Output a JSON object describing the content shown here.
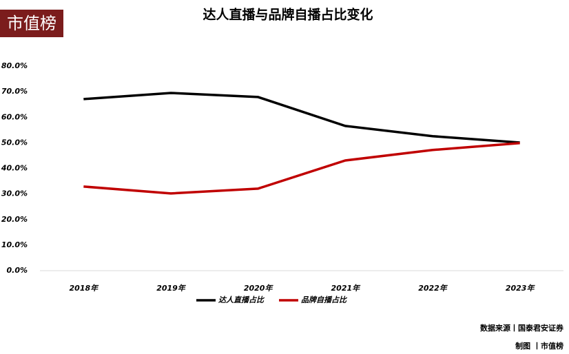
{
  "chart_data": {
    "type": "line",
    "title": "达人直播与品牌自播占比变化",
    "logo": "市值榜",
    "source": "数据来源丨国泰君安证券",
    "credit": "制图 丨市值榜",
    "categories": [
      "2018年",
      "2019年",
      "2020年",
      "2021年",
      "2022年",
      "2023年"
    ],
    "series": [
      {
        "name": "达人直播占比",
        "color": "#000000",
        "values": [
          67.1,
          69.5,
          67.9,
          56.6,
          52.6,
          50.1
        ]
      },
      {
        "name": "品牌自播占比",
        "color": "#c00000",
        "values": [
          32.9,
          30.2,
          32.1,
          43.1,
          47.2,
          49.9
        ]
      }
    ],
    "ylim": [
      0,
      80
    ],
    "yticks": [
      {
        "value": 0,
        "label": "0.0%"
      },
      {
        "value": 10,
        "label": "10.0%"
      },
      {
        "value": 20,
        "label": "20.0%"
      },
      {
        "value": 30,
        "label": "30.0%"
      },
      {
        "value": 40,
        "label": "40.0%"
      },
      {
        "value": 50,
        "label": "50.0%"
      },
      {
        "value": 60,
        "label": "60.0%"
      },
      {
        "value": 70,
        "label": "70.0%"
      },
      {
        "value": 80,
        "label": "80.0%"
      }
    ],
    "legend": "bottom"
  }
}
